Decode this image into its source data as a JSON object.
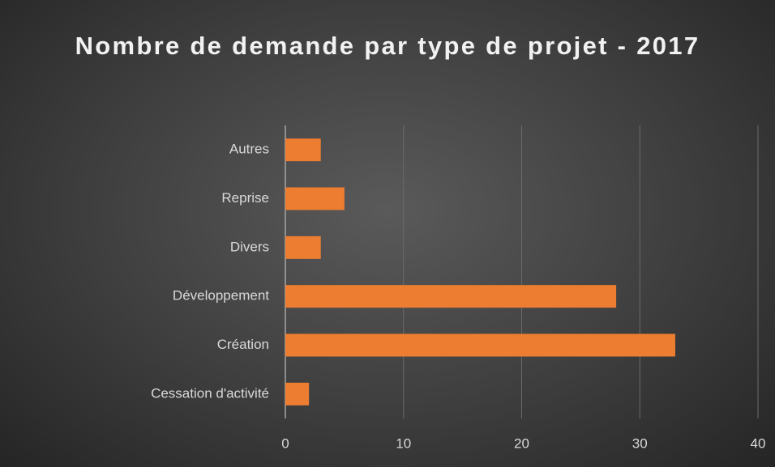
{
  "chart_data": {
    "type": "bar",
    "orientation": "horizontal",
    "title": "Nombre de demande par type de projet - 2017",
    "categories": [
      "Cessation d'activité",
      "Création",
      "Développement",
      "Divers",
      "Reprise",
      "Autres"
    ],
    "values": [
      2,
      33,
      28,
      3,
      5,
      3
    ],
    "color": "#ed7d31",
    "xlim": [
      0,
      40
    ],
    "xticks": [
      0,
      10,
      20,
      30,
      40
    ],
    "grid": true
  }
}
